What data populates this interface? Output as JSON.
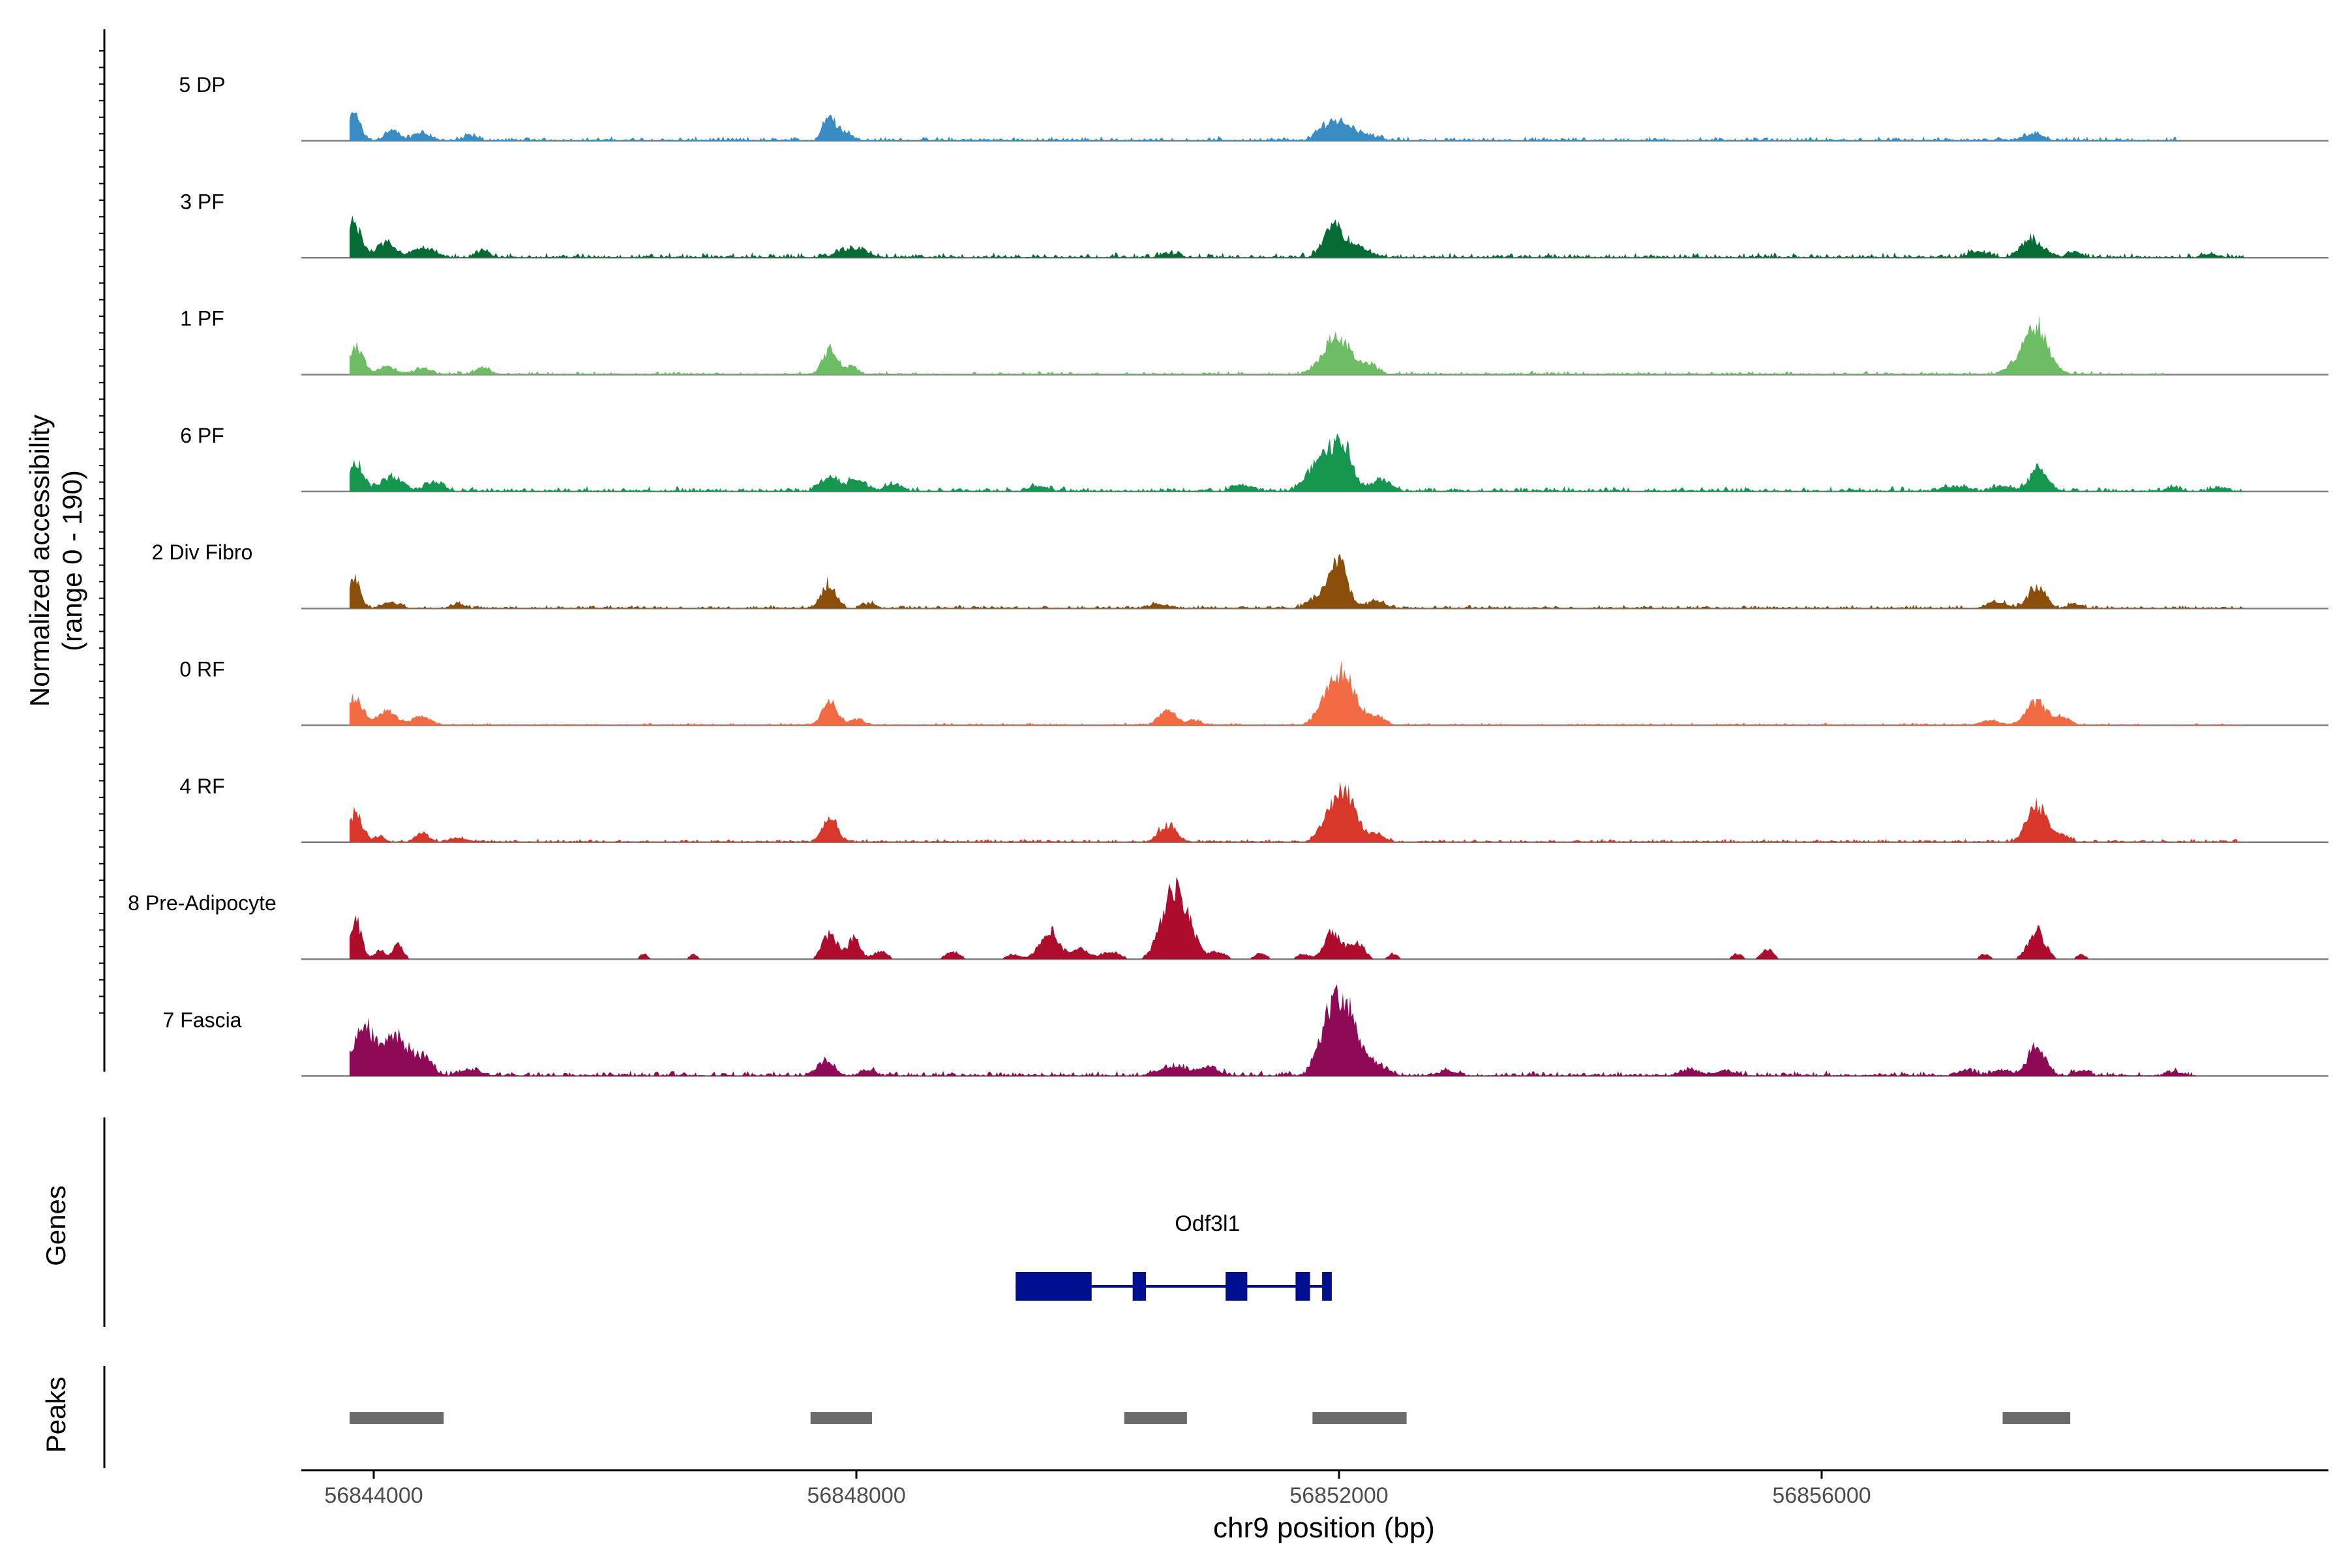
{
  "chart_data": {
    "type": "coverage-track",
    "y_axis_label": "Normalized accessibility",
    "y_axis_range_label": "(range 0 - 190)",
    "ylim": [
      0,
      190
    ],
    "x_axis_label": "chr9 position (bp)",
    "xlim": [
      56843400,
      56860200
    ],
    "x_ticks": [
      56844000,
      56848000,
      56852000,
      56856000
    ],
    "x_tick_labels": [
      "56844000",
      "56848000",
      "56852000",
      "56856000"
    ],
    "baseline_end": 56860200,
    "genes_label": "Genes",
    "peaks_label": "Peaks",
    "tracks": [
      {
        "name": "5 DP",
        "color": "#3a8dc4",
        "noise": 0.05,
        "end": 56858950,
        "peaks": [
          [
            56843840,
            0.28,
            50
          ],
          [
            56844150,
            0.1,
            60
          ],
          [
            56844400,
            0.08,
            70
          ],
          [
            56844800,
            0.05,
            60
          ],
          [
            56847770,
            0.3,
            45
          ],
          [
            56847900,
            0.1,
            60
          ],
          [
            56851900,
            0.14,
            80
          ],
          [
            56852050,
            0.16,
            90
          ],
          [
            56852250,
            0.05,
            80
          ],
          [
            56857750,
            0.07,
            80
          ]
        ]
      },
      {
        "name": "3 PF",
        "color": "#066b34",
        "noise": 0.06,
        "end": 56859500,
        "peaks": [
          [
            56843840,
            0.35,
            55
          ],
          [
            56844100,
            0.15,
            70
          ],
          [
            56844400,
            0.1,
            90
          ],
          [
            56844900,
            0.06,
            60
          ],
          [
            56847900,
            0.08,
            70
          ],
          [
            56848050,
            0.08,
            60
          ],
          [
            56850600,
            0.04,
            80
          ],
          [
            56851950,
            0.35,
            75
          ],
          [
            56852150,
            0.12,
            90
          ],
          [
            56857300,
            0.06,
            80
          ],
          [
            56857750,
            0.18,
            90
          ],
          [
            56858100,
            0.05,
            60
          ],
          [
            56859200,
            0.04,
            60
          ]
        ]
      },
      {
        "name": "1 PF",
        "color": "#6cbd64",
        "noise": 0.04,
        "end": 56858850,
        "peaks": [
          [
            56843860,
            0.3,
            55
          ],
          [
            56844100,
            0.08,
            70
          ],
          [
            56844400,
            0.06,
            70
          ],
          [
            56844900,
            0.07,
            60
          ],
          [
            56847780,
            0.25,
            60
          ],
          [
            56847960,
            0.08,
            50
          ],
          [
            56851980,
            0.4,
            110
          ],
          [
            56852250,
            0.1,
            70
          ],
          [
            56857780,
            0.5,
            95
          ],
          [
            56857600,
            0.08,
            80
          ]
        ]
      },
      {
        "name": "6 PF",
        "color": "#17964f",
        "noise": 0.06,
        "end": 56859500,
        "peaks": [
          [
            56843860,
            0.28,
            60
          ],
          [
            56844150,
            0.15,
            90
          ],
          [
            56844500,
            0.1,
            70
          ],
          [
            56847770,
            0.15,
            70
          ],
          [
            56848000,
            0.12,
            80
          ],
          [
            56848300,
            0.06,
            70
          ],
          [
            56849500,
            0.05,
            80
          ],
          [
            56851200,
            0.06,
            80
          ],
          [
            56851850,
            0.35,
            100
          ],
          [
            56852030,
            0.45,
            80
          ],
          [
            56852350,
            0.12,
            80
          ],
          [
            56857100,
            0.05,
            100
          ],
          [
            56857500,
            0.05,
            80
          ],
          [
            56857800,
            0.25,
            70
          ],
          [
            56858900,
            0.04,
            50
          ],
          [
            56859300,
            0.04,
            60
          ]
        ]
      },
      {
        "name": "2 Div Fibro",
        "color": "#8c4e0b",
        "noise": 0.04,
        "end": 56859500,
        "peaks": [
          [
            56843840,
            0.3,
            50
          ],
          [
            56844150,
            0.06,
            70
          ],
          [
            56844700,
            0.04,
            60
          ],
          [
            56847770,
            0.25,
            60
          ],
          [
            56848100,
            0.05,
            60
          ],
          [
            56850500,
            0.04,
            80
          ],
          [
            56851850,
            0.14,
            90
          ],
          [
            56852000,
            0.45,
            70
          ],
          [
            56852300,
            0.08,
            70
          ],
          [
            56857450,
            0.06,
            80
          ],
          [
            56857780,
            0.22,
            70
          ],
          [
            56858100,
            0.04,
            60
          ]
        ]
      },
      {
        "name": "0 RF",
        "color": "#f26b42",
        "noise": 0.03,
        "end": 56859500,
        "peaks": [
          [
            56843850,
            0.3,
            55
          ],
          [
            56844100,
            0.15,
            80
          ],
          [
            56844400,
            0.08,
            80
          ],
          [
            56847780,
            0.25,
            60
          ],
          [
            56848000,
            0.06,
            60
          ],
          [
            56850580,
            0.15,
            70
          ],
          [
            56850800,
            0.05,
            60
          ],
          [
            56851900,
            0.25,
            80
          ],
          [
            56852050,
            0.5,
            90
          ],
          [
            56852300,
            0.1,
            70
          ],
          [
            56857780,
            0.25,
            80
          ],
          [
            56858000,
            0.08,
            60
          ],
          [
            56857400,
            0.05,
            80
          ]
        ]
      },
      {
        "name": "4 RF",
        "color": "#d9372a",
        "noise": 0.04,
        "end": 56859500,
        "peaks": [
          [
            56843850,
            0.3,
            55
          ],
          [
            56844050,
            0.05,
            50
          ],
          [
            56844400,
            0.1,
            55
          ],
          [
            56844700,
            0.04,
            80
          ],
          [
            56847780,
            0.25,
            60
          ],
          [
            56850580,
            0.18,
            70
          ],
          [
            56851900,
            0.2,
            70
          ],
          [
            56852050,
            0.55,
            80
          ],
          [
            56852300,
            0.08,
            80
          ],
          [
            56857780,
            0.4,
            80
          ],
          [
            56858000,
            0.06,
            60
          ]
        ]
      },
      {
        "name": "8 Pre-Adipocyte",
        "color": "#ad0c2c",
        "noise": 0.0,
        "end": 56858550,
        "peaks": [
          [
            56843850,
            0.4,
            50
          ],
          [
            56844050,
            0.1,
            40
          ],
          [
            56844200,
            0.15,
            45
          ],
          [
            56846240,
            0.06,
            30
          ],
          [
            56846650,
            0.06,
            30
          ],
          [
            56847780,
            0.28,
            60
          ],
          [
            56847980,
            0.22,
            50
          ],
          [
            56848200,
            0.08,
            60
          ],
          [
            56848800,
            0.08,
            60
          ],
          [
            56849300,
            0.05,
            60
          ],
          [
            56849600,
            0.3,
            80
          ],
          [
            56849850,
            0.12,
            60
          ],
          [
            56850100,
            0.08,
            80
          ],
          [
            56850500,
            0.1,
            70
          ],
          [
            56850620,
            0.6,
            80
          ],
          [
            56850750,
            0.3,
            80
          ],
          [
            56851000,
            0.08,
            60
          ],
          [
            56851350,
            0.06,
            50
          ],
          [
            56851700,
            0.06,
            50
          ],
          [
            56851950,
            0.3,
            70
          ],
          [
            56852150,
            0.18,
            60
          ],
          [
            56852450,
            0.06,
            40
          ],
          [
            56855300,
            0.06,
            40
          ],
          [
            56855550,
            0.1,
            50
          ],
          [
            56857350,
            0.06,
            40
          ],
          [
            56857780,
            0.3,
            70
          ],
          [
            56858150,
            0.05,
            40
          ]
        ]
      },
      {
        "name": "7 Fascia",
        "color": "#8e0a56",
        "noise": 0.06,
        "end": 56859100,
        "peaks": [
          [
            56843920,
            0.5,
            90
          ],
          [
            56844180,
            0.4,
            90
          ],
          [
            56844400,
            0.2,
            80
          ],
          [
            56844800,
            0.06,
            80
          ],
          [
            56847750,
            0.15,
            70
          ],
          [
            56848100,
            0.05,
            60
          ],
          [
            56850620,
            0.1,
            100
          ],
          [
            56850900,
            0.08,
            100
          ],
          [
            56851900,
            0.4,
            80
          ],
          [
            56852050,
            0.7,
            100
          ],
          [
            56852300,
            0.12,
            90
          ],
          [
            56852900,
            0.05,
            80
          ],
          [
            56854900,
            0.06,
            80
          ],
          [
            56855200,
            0.05,
            80
          ],
          [
            56857200,
            0.05,
            80
          ],
          [
            56857500,
            0.06,
            70
          ],
          [
            56857780,
            0.3,
            70
          ],
          [
            56858150,
            0.05,
            60
          ],
          [
            56858900,
            0.04,
            60
          ]
        ]
      }
    ],
    "gene": {
      "name": "Odf3l1",
      "color": "#000f8f",
      "strand": "-",
      "span": [
        56849320,
        56851940
      ],
      "exons": [
        [
          56849320,
          56849950
        ],
        [
          56851130,
          56851240
        ],
        [
          56851640,
          56851760
        ],
        [
          56851860,
          56851940
        ]
      ],
      "cds_exons": [
        [
          56850290,
          56850400
        ],
        [
          56851060,
          56851160
        ]
      ],
      "arrows": [
        56849780,
        56851060
      ]
    },
    "peaks_track": {
      "color": "#6b6b6b",
      "regions": [
        [
          56843800,
          56844580
        ],
        [
          56847620,
          56848130
        ],
        [
          56850220,
          56850740
        ],
        [
          56851780,
          56852560
        ],
        [
          56857500,
          56858060
        ]
      ]
    }
  }
}
